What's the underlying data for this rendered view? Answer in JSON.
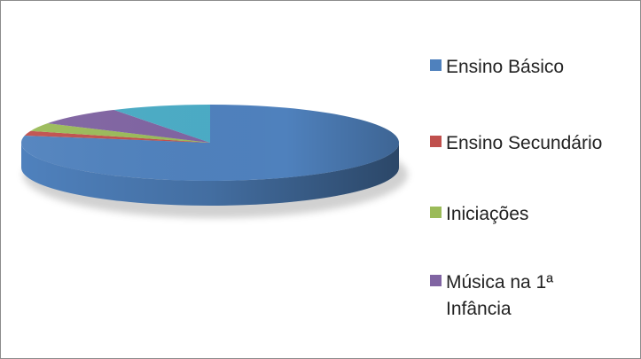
{
  "chart_data": {
    "type": "pie",
    "three_d": true,
    "title": "",
    "legend_position": "right",
    "slices": [
      {
        "label": "Ensino Básico",
        "value": 78,
        "color": "#4f81bd",
        "dark": "#1f3d61"
      },
      {
        "label": "Ensino Secundário",
        "value": 2,
        "color": "#c0504d",
        "dark": "#7a2220"
      },
      {
        "label": "Iniciações",
        "value": 3.5,
        "color": "#9bbb59",
        "dark": "#5d7a2a"
      },
      {
        "label": "Música na 1ª Infância",
        "value": 8,
        "color": "#8064a2",
        "dark": "#4b3466"
      },
      {
        "label": "",
        "value": 8.5,
        "color": "#4bacc6",
        "dark": "#1f6d82"
      }
    ]
  }
}
